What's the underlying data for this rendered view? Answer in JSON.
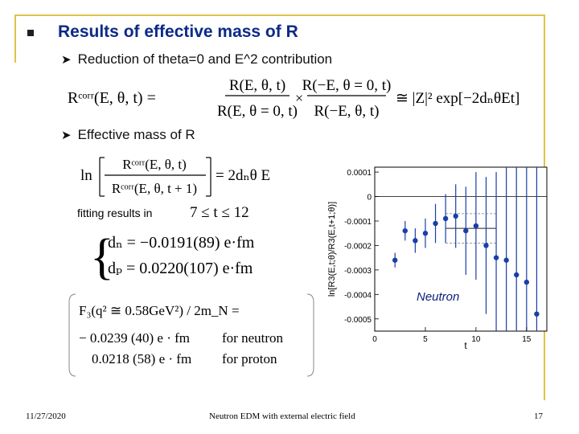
{
  "slide": {
    "title": "Results of effective mass of R",
    "bullet1": "Reduction of theta=0 and E^2 contribution",
    "bullet2": "Effective mass of R",
    "fitting_label": "fitting results in",
    "fit_range": "7 ≤ t ≤ 12",
    "eq_dn": "dₙ = −0.0191(89) e·fm",
    "eq_dp": "dₚ = 0.0220(107) e·fm",
    "eq1_lhs": "Rᶜᵒʳʳ(E, θ, t) =",
    "eq1_frac1_num": "R(E, θ, t)",
    "eq1_frac1_den": "R(E, θ = 0, t)",
    "eq1_frac2_num": "R(−E, θ = 0, t)",
    "eq1_frac2_den": "R(−E, θ, t)",
    "eq1_rhs": "≅ |Z|² exp[−2dₙθEt]",
    "eq2_num": "Rᶜᵒʳʳ(E, θ, t)",
    "eq2_den": "Rᶜᵒʳʳ(E, θ, t + 1)",
    "eq2_rhs": "= 2dₙθ E",
    "box_line1": "F₃(q² ≅ 0.58GeV²) / 2m_N =",
    "box_line2_val": "− 0.0239 (40) e · fm",
    "box_line2_label": "for neutron",
    "box_line3_val": "0.0218 (58) e · fm",
    "box_line3_label": "for proton",
    "date": "11/27/2020",
    "footer_title": "Neutron EDM with external electric field",
    "page_number": "17"
  },
  "chart_data": {
    "type": "scatter",
    "title": "",
    "annotation": "Neutron",
    "xlabel": "t",
    "ylabel": "ln[R3(E,t;θ)/R3(E,t+1;θ)]",
    "xlim": [
      0,
      17
    ],
    "ylim": [
      -0.00055,
      0.00012
    ],
    "xticks": [
      0,
      5,
      10,
      15
    ],
    "xtick_labels": [
      "0",
      "5",
      "10",
      "15"
    ],
    "yticks": [
      0.0001,
      0,
      -0.0001,
      -0.0002,
      -0.0003,
      -0.0004,
      -0.0005
    ],
    "ytick_labels": [
      "0.0001",
      "0",
      "-0.0001",
      "-0.0002",
      "-0.0003",
      "-0.0004",
      "-0.0005"
    ],
    "points": [
      {
        "x": 2,
        "y": -0.00026,
        "err": 3e-05
      },
      {
        "x": 3,
        "y": -0.00014,
        "err": 4e-05
      },
      {
        "x": 4,
        "y": -0.00018,
        "err": 5e-05
      },
      {
        "x": 5,
        "y": -0.00015,
        "err": 6e-05
      },
      {
        "x": 6,
        "y": -0.00011,
        "err": 8e-05
      },
      {
        "x": 7,
        "y": -9e-05,
        "err": 0.0001
      },
      {
        "x": 8,
        "y": -8e-05,
        "err": 0.00013
      },
      {
        "x": 9,
        "y": -0.00014,
        "err": 0.00018
      },
      {
        "x": 10,
        "y": -0.00012,
        "err": 0.00022
      },
      {
        "x": 11,
        "y": -0.0002,
        "err": 0.00028
      },
      {
        "x": 12,
        "y": -0.00025,
        "err": 0.00035
      },
      {
        "x": 13,
        "y": -0.00026,
        "err": 0.00045
      },
      {
        "x": 14,
        "y": -0.00032,
        "err": 0.0006
      },
      {
        "x": 15,
        "y": -0.00035,
        "err": 0.0008
      },
      {
        "x": 16,
        "y": -0.00048,
        "err": 0.0012
      }
    ],
    "fit": {
      "x_start": 7,
      "x_end": 12,
      "value": -0.00013,
      "err": 6e-05
    },
    "colors": {
      "points": "#1a3ea8",
      "fit": "#222222"
    }
  }
}
